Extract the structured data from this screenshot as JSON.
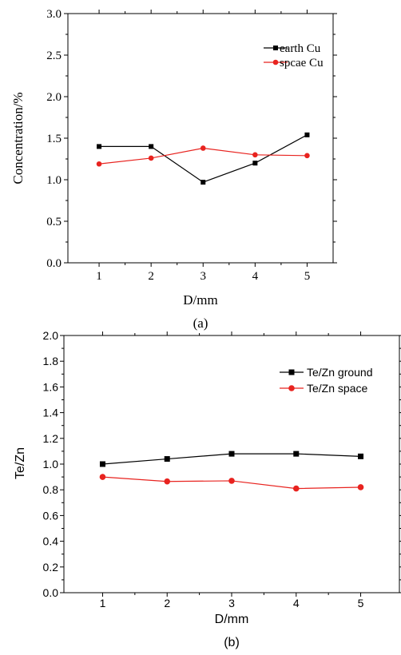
{
  "chart_data": [
    {
      "type": "line",
      "panel_label": "(a)",
      "xlabel": "D/mm",
      "ylabel": "Concentration/%",
      "x": [
        1,
        2,
        3,
        4,
        5
      ],
      "x_ticks": [
        "1",
        "2",
        "3",
        "4",
        "5"
      ],
      "xlim": [
        0.4,
        5.5
      ],
      "ylim": [
        0.0,
        3.0
      ],
      "y_ticks": [
        "0.0",
        "0.5",
        "1.0",
        "1.5",
        "2.0",
        "2.5",
        "3.0"
      ],
      "grid": false,
      "legend_position": "top-right",
      "series": [
        {
          "name": "earth Cu",
          "color": "#000000",
          "marker": "square",
          "values": [
            1.4,
            1.4,
            0.97,
            1.2,
            1.54
          ]
        },
        {
          "name": "spcae Cu",
          "color": "#e8231f",
          "marker": "circle",
          "values": [
            1.19,
            1.26,
            1.38,
            1.3,
            1.29
          ]
        }
      ]
    },
    {
      "type": "line",
      "panel_label": "(b)",
      "xlabel": "D/mm",
      "ylabel": "Te/Zn",
      "x": [
        1,
        2,
        3,
        4,
        5
      ],
      "x_ticks": [
        "1",
        "2",
        "3",
        "4",
        "5"
      ],
      "xlim": [
        0.4,
        5.6
      ],
      "ylim": [
        0.0,
        2.0
      ],
      "y_ticks": [
        "0.0",
        "0.2",
        "0.4",
        "0.6",
        "0.8",
        "1.0",
        "1.2",
        "1.4",
        "1.6",
        "1.8",
        "2.0"
      ],
      "grid": false,
      "legend_position": "top-right",
      "series": [
        {
          "name": "Te/Zn ground",
          "color": "#000000",
          "marker": "square",
          "values": [
            1.0,
            1.04,
            1.08,
            1.08,
            1.06
          ]
        },
        {
          "name": "Te/Zn space",
          "color": "#e8231f",
          "marker": "circle",
          "values": [
            0.9,
            0.865,
            0.87,
            0.81,
            0.82
          ]
        }
      ]
    }
  ]
}
